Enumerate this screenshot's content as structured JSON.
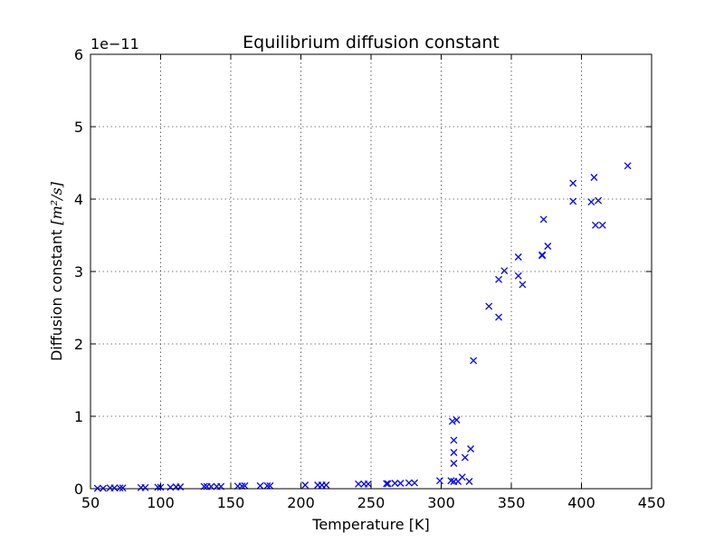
{
  "chart_data": {
    "type": "scatter",
    "title": "Equilibrium diffusion constant",
    "xlabel": "Temperature [K]",
    "ylabel": "Diffusion constant [m²/s]",
    "ylabel_prefix": "Diffusion constant ",
    "ylabel_unit": "[m²/s]",
    "y_offset_label": "1e−11",
    "xlim": [
      50,
      450
    ],
    "ylim": [
      0,
      6
    ],
    "xticks": [
      50,
      100,
      150,
      200,
      250,
      300,
      350,
      400,
      450
    ],
    "yticks": [
      0,
      1,
      2,
      3,
      4,
      5,
      6
    ],
    "grid": true,
    "marker": "x",
    "color": "#0000ff",
    "series": [
      {
        "x": [
          55,
          59,
          64,
          67,
          71,
          73,
          86,
          89,
          98,
          100,
          107,
          111,
          114,
          131,
          133,
          136,
          140,
          143,
          155,
          158,
          160,
          171,
          176,
          178,
          203,
          212,
          215,
          218,
          241,
          245,
          248,
          261,
          262,
          267,
          271,
          277,
          281,
          299,
          307,
          308,
          309,
          309,
          309,
          309,
          311,
          312,
          315,
          317,
          320,
          321,
          323,
          334,
          341,
          341,
          345,
          355,
          355,
          358,
          372,
          372,
          373,
          376,
          394,
          394,
          407,
          409,
          410,
          412,
          415,
          433
        ],
        "y": [
          0.005,
          0.005,
          0.01,
          0.01,
          0.01,
          0.01,
          0.015,
          0.015,
          0.02,
          0.02,
          0.02,
          0.025,
          0.025,
          0.03,
          0.03,
          0.03,
          0.03,
          0.03,
          0.035,
          0.035,
          0.04,
          0.04,
          0.04,
          0.04,
          0.05,
          0.05,
          0.05,
          0.05,
          0.065,
          0.065,
          0.065,
          0.07,
          0.07,
          0.075,
          0.075,
          0.08,
          0.08,
          0.11,
          0.11,
          0.93,
          0.67,
          0.5,
          0.35,
          0.1,
          0.95,
          0.1,
          0.16,
          0.43,
          0.1,
          0.55,
          1.77,
          2.52,
          2.37,
          2.89,
          3.01,
          2.94,
          3.2,
          2.82,
          3.23,
          3.22,
          3.72,
          3.35,
          4.22,
          3.97,
          3.96,
          4.3,
          3.64,
          3.98,
          3.64,
          4.46
        ]
      }
    ]
  }
}
